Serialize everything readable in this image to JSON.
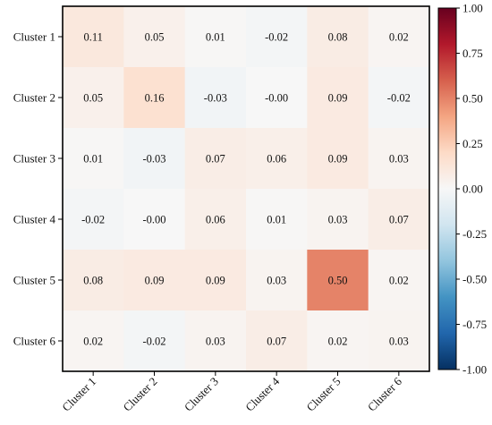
{
  "chart_data": {
    "type": "heatmap",
    "title": "",
    "xlabel": "",
    "ylabel": "",
    "x_categories": [
      "Cluster 1",
      "Cluster 2",
      "Cluster 3",
      "Cluster 4",
      "Cluster 5",
      "Cluster 6"
    ],
    "y_categories": [
      "Cluster 1",
      "Cluster 2",
      "Cluster 3",
      "Cluster 4",
      "Cluster 5",
      "Cluster 6"
    ],
    "values": [
      [
        0.11,
        0.05,
        0.01,
        -0.02,
        0.08,
        0.02
      ],
      [
        0.05,
        0.16,
        -0.03,
        -0.0,
        0.09,
        -0.02
      ],
      [
        0.01,
        -0.03,
        0.07,
        0.06,
        0.09,
        0.03
      ],
      [
        -0.02,
        -0.0,
        0.06,
        0.01,
        0.03,
        0.07
      ],
      [
        0.08,
        0.09,
        0.09,
        0.03,
        0.5,
        0.02
      ],
      [
        0.02,
        -0.02,
        0.03,
        0.07,
        0.02,
        0.03
      ]
    ],
    "value_labels": [
      [
        "0.11",
        "0.05",
        "0.01",
        "-0.02",
        "0.08",
        "0.02"
      ],
      [
        "0.05",
        "0.16",
        "-0.03",
        "-0.00",
        "0.09",
        "-0.02"
      ],
      [
        "0.01",
        "-0.03",
        "0.07",
        "0.06",
        "0.09",
        "0.03"
      ],
      [
        "-0.02",
        "-0.00",
        "0.06",
        "0.01",
        "0.03",
        "0.07"
      ],
      [
        "0.08",
        "0.09",
        "0.09",
        "0.03",
        "0.50",
        "0.02"
      ],
      [
        "0.02",
        "-0.02",
        "0.03",
        "0.07",
        "0.02",
        "0.03"
      ]
    ],
    "colorbar": {
      "colormap": "RdBu_r",
      "vmin": -1.0,
      "vmax": 1.0,
      "ticks": [
        1.0,
        0.75,
        0.5,
        0.25,
        0.0,
        -0.25,
        -0.5,
        -0.75,
        -1.0
      ],
      "tick_labels": [
        "1.00",
        "0.75",
        "0.50",
        "0.25",
        "0.00",
        "-0.25",
        "-0.50",
        "-0.75",
        "-1.00"
      ]
    },
    "grid": false,
    "x_tick_rotation": 45
  }
}
